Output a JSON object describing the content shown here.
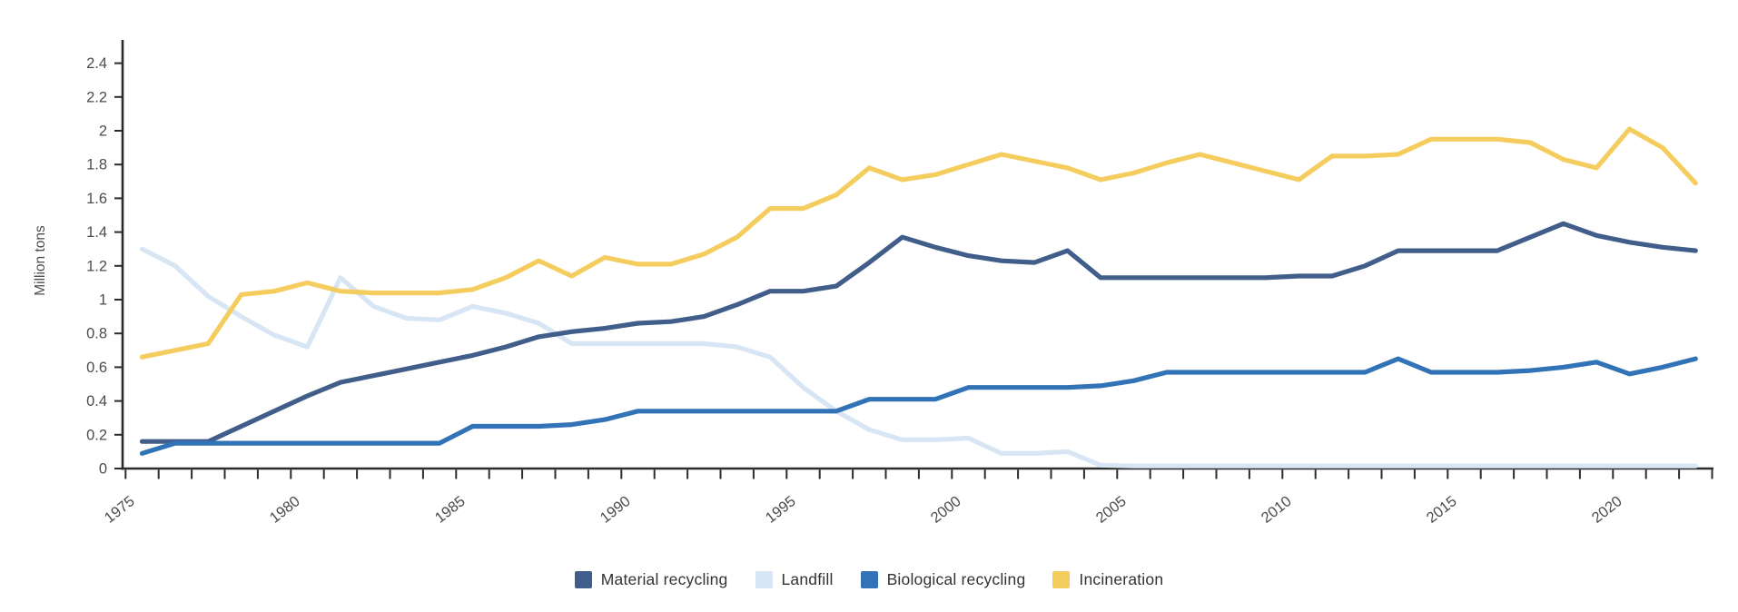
{
  "chart_data": {
    "type": "line",
    "title": "",
    "xlabel": "",
    "ylabel": "Million tons",
    "ylim": [
      0,
      2.4
    ],
    "ytick_step": 0.2,
    "grid": false,
    "legend_position": "bottom",
    "x_tick_label_interval": 5,
    "x": [
      1975,
      1976,
      1977,
      1978,
      1979,
      1980,
      1981,
      1982,
      1983,
      1984,
      1985,
      1986,
      1987,
      1988,
      1989,
      1990,
      1991,
      1992,
      1993,
      1994,
      1995,
      1996,
      1997,
      1998,
      1999,
      2000,
      2001,
      2002,
      2003,
      2004,
      2005,
      2006,
      2007,
      2008,
      2009,
      2010,
      2011,
      2012,
      2013,
      2014,
      2015,
      2016,
      2017,
      2018,
      2019,
      2020,
      2021,
      2022
    ],
    "series": [
      {
        "name": "Material recycling",
        "color": "#415e8b",
        "values": [
          0.16,
          0.16,
          0.16,
          0.25,
          0.34,
          0.43,
          0.51,
          0.55,
          0.59,
          0.63,
          0.67,
          0.72,
          0.78,
          0.81,
          0.83,
          0.86,
          0.87,
          0.9,
          0.97,
          1.05,
          1.05,
          1.08,
          1.22,
          1.37,
          1.31,
          1.26,
          1.23,
          1.22,
          1.29,
          1.13,
          1.13,
          1.13,
          1.13,
          1.13,
          1.13,
          1.14,
          1.14,
          1.2,
          1.29,
          1.29,
          1.29,
          1.29,
          1.37,
          1.45,
          1.38,
          1.34,
          1.31,
          1.29
        ]
      },
      {
        "name": "Landfill",
        "color": "#d8e5f4",
        "values": [
          1.3,
          1.2,
          1.02,
          0.9,
          0.79,
          0.72,
          1.13,
          0.96,
          0.89,
          0.88,
          0.96,
          0.92,
          0.86,
          0.74,
          0.74,
          0.74,
          0.74,
          0.74,
          0.72,
          0.66,
          0.48,
          0.34,
          0.23,
          0.17,
          0.17,
          0.18,
          0.09,
          0.09,
          0.1,
          0.02,
          0.015,
          0.015,
          0.015,
          0.015,
          0.015,
          0.015,
          0.015,
          0.015,
          0.015,
          0.015,
          0.015,
          0.015,
          0.015,
          0.015,
          0.015,
          0.015,
          0.015,
          0.015
        ]
      },
      {
        "name": "Biological recycling",
        "color": "#3173b6",
        "values": [
          0.09,
          0.15,
          0.15,
          0.15,
          0.15,
          0.15,
          0.15,
          0.15,
          0.15,
          0.15,
          0.25,
          0.25,
          0.25,
          0.26,
          0.29,
          0.34,
          0.34,
          0.34,
          0.34,
          0.34,
          0.34,
          0.34,
          0.41,
          0.41,
          0.41,
          0.48,
          0.48,
          0.48,
          0.48,
          0.49,
          0.52,
          0.57,
          0.57,
          0.57,
          0.57,
          0.57,
          0.57,
          0.57,
          0.65,
          0.57,
          0.57,
          0.57,
          0.58,
          0.6,
          0.63,
          0.56,
          0.6,
          0.65
        ]
      },
      {
        "name": "Incineration",
        "color": "#f5cd5f",
        "values": [
          0.66,
          0.7,
          0.74,
          1.03,
          1.05,
          1.1,
          1.05,
          1.04,
          1.04,
          1.04,
          1.06,
          1.13,
          1.23,
          1.14,
          1.25,
          1.21,
          1.21,
          1.27,
          1.37,
          1.54,
          1.54,
          1.62,
          1.78,
          1.71,
          1.74,
          1.8,
          1.86,
          1.82,
          1.78,
          1.71,
          1.75,
          1.81,
          1.86,
          1.81,
          1.76,
          1.71,
          1.85,
          1.85,
          1.86,
          1.95,
          1.95,
          1.95,
          1.93,
          1.83,
          1.78,
          2.01,
          1.9,
          1.69
        ]
      }
    ]
  }
}
